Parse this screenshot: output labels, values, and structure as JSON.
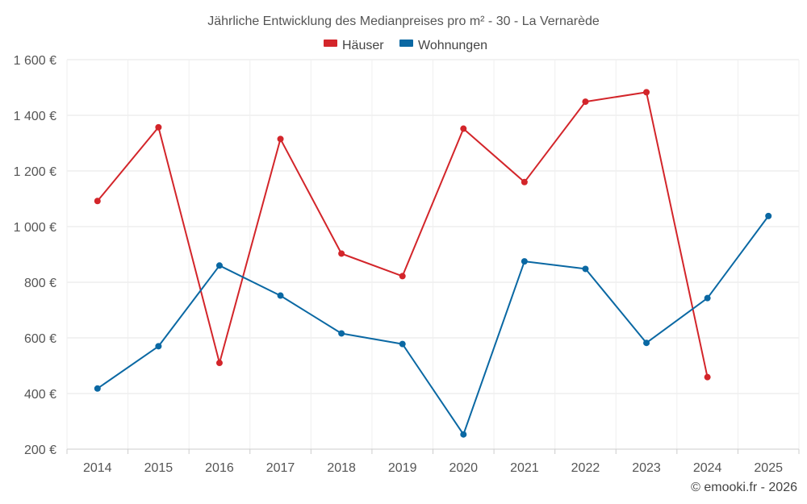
{
  "chart_data": {
    "type": "line",
    "title": "Jährliche Entwicklung des Medianpreises pro m² - 30 - La Vernarède",
    "categories": [
      "2014",
      "2015",
      "2016",
      "2017",
      "2018",
      "2019",
      "2020",
      "2021",
      "2022",
      "2023",
      "2024",
      "2025"
    ],
    "ylim": [
      200,
      1600
    ],
    "yticks": [
      200,
      400,
      600,
      800,
      1000,
      1200,
      1400,
      1600
    ],
    "ytick_labels": [
      "200 €",
      "400 €",
      "600 €",
      "800 €",
      "1 000 €",
      "1 200 €",
      "1 400 €",
      "1 600 €"
    ],
    "grid": true,
    "legend_position": "top-center",
    "series": [
      {
        "name": "Häuser",
        "color": "#d3252a",
        "values": [
          1092,
          1357,
          510,
          1315,
          903,
          822,
          1352,
          1160,
          1449,
          1483,
          459,
          null
        ]
      },
      {
        "name": "Wohnungen",
        "color": "#0a68a3",
        "values": [
          418,
          570,
          860,
          752,
          616,
          578,
          253,
          875,
          848,
          582,
          743,
          1038
        ]
      }
    ]
  },
  "credit": "© emooki.fr - 2026"
}
